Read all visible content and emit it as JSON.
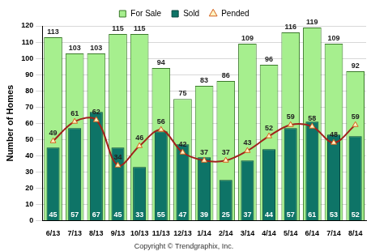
{
  "chart_data": {
    "type": "bar",
    "y_label": "Number of Homes",
    "annotation": "Copyright © Trendgraphix, Inc.",
    "categories": [
      "6/13",
      "7/13",
      "8/13",
      "9/13",
      "10/13",
      "11/13",
      "12/13",
      "1/14",
      "2/14",
      "3/14",
      "4/14",
      "5/14",
      "6/14",
      "7/14",
      "8/14"
    ],
    "series": [
      {
        "name": "For Sale",
        "type": "bar",
        "color": "#a6ef8e",
        "values": [
          113,
          103,
          103,
          115,
          115,
          94,
          75,
          83,
          86,
          109,
          96,
          116,
          119,
          109,
          92
        ]
      },
      {
        "name": "Sold",
        "type": "bar",
        "color": "#0e7467",
        "values": [
          45,
          57,
          67,
          45,
          33,
          55,
          47,
          39,
          25,
          37,
          44,
          57,
          61,
          53,
          52
        ]
      },
      {
        "name": "Pended",
        "type": "line",
        "color": "#a0221c",
        "marker": "triangle",
        "line_style": "solid",
        "values": [
          49,
          61,
          62,
          34,
          46,
          56,
          42,
          37,
          37,
          43,
          52,
          59,
          58,
          48,
          59
        ]
      }
    ],
    "ylim": [
      0,
      120
    ],
    "yticks": [
      0,
      10,
      20,
      30,
      40,
      50,
      60,
      70,
      80,
      90,
      100,
      110,
      120
    ],
    "grid": true,
    "legend": "top",
    "data_labels": true
  }
}
